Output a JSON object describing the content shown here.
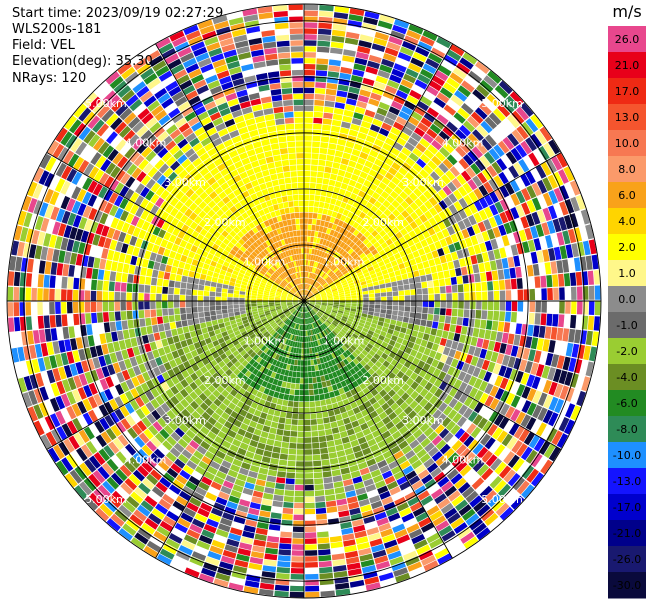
{
  "info": {
    "start_time": "Start time: 2023/09/19 02:27:29",
    "instrument": "WLS200s-181",
    "field": "Field: VEL",
    "elevation": "Elevation(deg): 35.30",
    "nrays": "NRays: 120"
  },
  "chart_data": {
    "type": "heatmap",
    "projection": "polar-ppi",
    "rays": 120,
    "range_rings_km": [
      1.0,
      2.0,
      3.0,
      4.0,
      5.0
    ],
    "ring_labels": [
      "1.00km",
      "2.00km",
      "3.00km",
      "4.00km",
      "5.00km"
    ],
    "max_range_km": 5.3,
    "azimuth_lines_deg": [
      0,
      30,
      60,
      90,
      120,
      150,
      180,
      210,
      240,
      270,
      300,
      330
    ],
    "colorbar": {
      "unit": "m/s",
      "levels": [
        {
          "label": "26.0",
          "color": "#e8478d"
        },
        {
          "label": "21.0",
          "color": "#e8001a"
        },
        {
          "label": "17.0",
          "color": "#ef2a14"
        },
        {
          "label": "13.0",
          "color": "#f5552e"
        },
        {
          "label": "10.0",
          "color": "#f77852"
        },
        {
          "label": "8.0",
          "color": "#fb9a6a"
        },
        {
          "label": "6.0",
          "color": "#f9a21a"
        },
        {
          "label": "4.0",
          "color": "#ffd400"
        },
        {
          "label": "2.0",
          "color": "#ffff00"
        },
        {
          "label": "1.0",
          "color": "#fff78a"
        },
        {
          "label": "0.0",
          "color": "#8c8c8c"
        },
        {
          "label": "-1.0",
          "color": "#6b6b6b"
        },
        {
          "label": "-2.0",
          "color": "#9acd32"
        },
        {
          "label": "-4.0",
          "color": "#6b8e23"
        },
        {
          "label": "-6.0",
          "color": "#228b22"
        },
        {
          "label": "-8.0",
          "color": "#2e8b57"
        },
        {
          "label": "-10.0",
          "color": "#1e90ff"
        },
        {
          "label": "-13.0",
          "color": "#1414ff"
        },
        {
          "label": "-17.0",
          "color": "#0000cd"
        },
        {
          "label": "-21.0",
          "color": "#00008b"
        },
        {
          "label": "-26.0",
          "color": "#191970"
        },
        {
          "label": "-30.0",
          "color": "#0a0a3c"
        }
      ]
    },
    "regions": [
      {
        "name": "near-positive",
        "azimuth_deg": [
          270,
          90
        ],
        "range_km": [
          0.0,
          3.2
        ],
        "velocity_mps": 2.0
      },
      {
        "name": "core-positive",
        "azimuth_deg": [
          315,
          45
        ],
        "range_km": [
          0.0,
          1.8
        ],
        "velocity_mps": 4.0
      },
      {
        "name": "near-negative",
        "azimuth_deg": [
          90,
          270
        ],
        "range_km": [
          0.0,
          3.4
        ],
        "velocity_mps": -2.0
      },
      {
        "name": "core-negative",
        "azimuth_deg": [
          145,
          215
        ],
        "range_km": [
          0.0,
          2.0
        ],
        "velocity_mps": -6.0
      },
      {
        "name": "noise",
        "azimuth_deg": [
          0,
          360
        ],
        "range_km": [
          3.6,
          5.3
        ],
        "velocity_mps": null
      }
    ]
  }
}
